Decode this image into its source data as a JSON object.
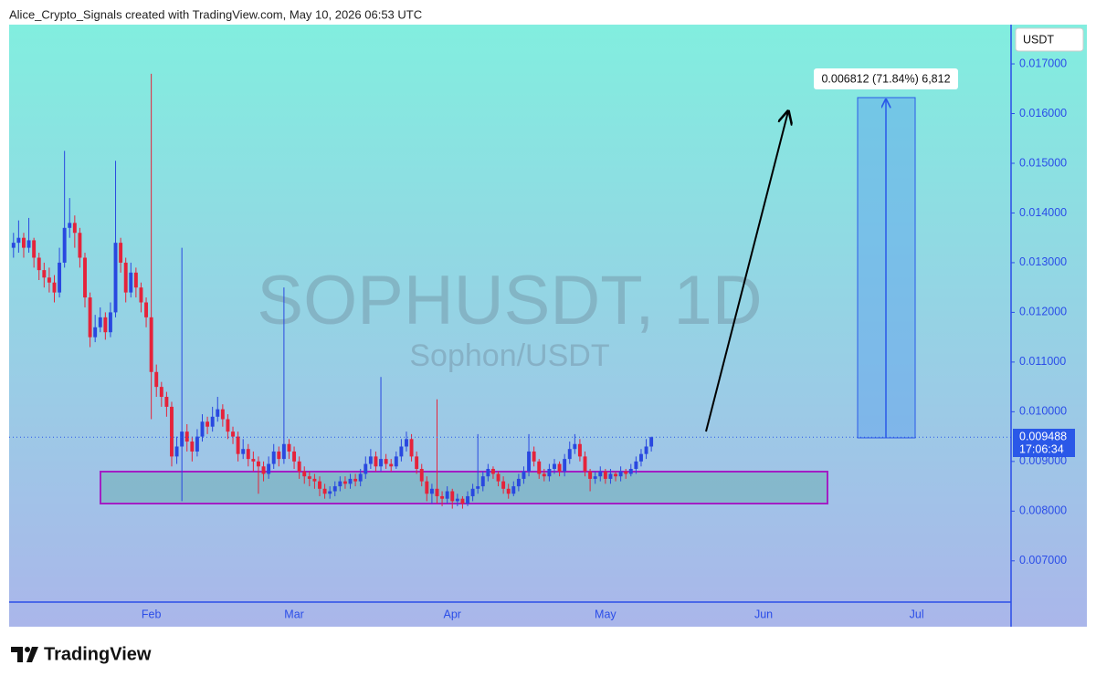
{
  "header": "Alice_Crypto_Signals created with TradingView.com, May 10, 2026 06:53 UTC",
  "footer": {
    "brand": "TradingView"
  },
  "chart_data": {
    "type": "candlestick",
    "title": "SOPHUSDT, 1D",
    "subtitle": "Sophon/USDT",
    "currency": "USDT",
    "countdown": "17:06:34",
    "measure_label": "0.006812 (71.84%) 6,812",
    "up_color": "#2948e0",
    "down_color": "#e5233a",
    "ylim": [
      0.00617,
      0.01779
    ],
    "yticks": [
      {
        "value": 0.007,
        "label": "0.007000"
      },
      {
        "value": 0.008,
        "label": "0.008000"
      },
      {
        "value": 0.009,
        "label": "0.009000"
      },
      {
        "value": 0.01,
        "label": "0.010000"
      },
      {
        "value": 0.011,
        "label": "0.011000"
      },
      {
        "value": 0.012,
        "label": "0.012000"
      },
      {
        "value": 0.013,
        "label": "0.013000"
      },
      {
        "value": 0.014,
        "label": "0.014000"
      },
      {
        "value": 0.015,
        "label": "0.015000"
      },
      {
        "value": 0.016,
        "label": "0.016000"
      },
      {
        "value": 0.017,
        "label": "0.017000"
      }
    ],
    "categories": [
      null,
      null,
      null,
      null,
      null,
      null,
      null,
      null,
      null,
      null,
      null,
      null,
      null,
      null,
      null,
      null,
      null,
      null,
      null,
      null,
      null,
      null,
      null,
      null,
      null,
      null,
      null,
      "Feb",
      null,
      null,
      null,
      null,
      null,
      null,
      null,
      null,
      null,
      null,
      null,
      null,
      null,
      null,
      null,
      null,
      null,
      null,
      null,
      null,
      null,
      null,
      null,
      null,
      null,
      null,
      null,
      "Mar",
      null,
      null,
      null,
      null,
      null,
      null,
      null,
      null,
      null,
      null,
      null,
      null,
      null,
      null,
      null,
      null,
      null,
      null,
      null,
      null,
      null,
      null,
      null,
      null,
      null,
      null,
      null,
      null,
      null,
      null,
      "Apr",
      null,
      null,
      null,
      null,
      null,
      null,
      null,
      null,
      null,
      null,
      null,
      null,
      null,
      null,
      null,
      null,
      null,
      null,
      null,
      null,
      null,
      null,
      null,
      null,
      null,
      null,
      null,
      null,
      null,
      "May",
      null,
      null,
      null,
      null,
      null,
      null,
      null,
      null,
      null,
      null,
      null,
      null,
      null,
      null,
      null,
      null,
      null,
      null,
      null,
      null,
      null,
      null,
      null,
      null,
      null,
      null,
      null,
      null,
      null,
      null,
      "Jun",
      null,
      null,
      null,
      null,
      null,
      null,
      null,
      null,
      null,
      null,
      null,
      null,
      null,
      null,
      null,
      null,
      null,
      null,
      null,
      null,
      null,
      null,
      null,
      null,
      null,
      null,
      null,
      null,
      null,
      "Jul",
      null,
      null,
      null,
      null,
      null,
      null,
      null,
      null,
      null,
      null,
      null,
      null,
      null,
      null,
      null,
      null,
      null,
      null
    ],
    "open": [
      0.0133,
      0.0134,
      0.0135,
      0.0133,
      0.01345,
      0.0131,
      0.01285,
      0.0127,
      0.0126,
      0.0124,
      0.013,
      0.0137,
      0.0138,
      0.0136,
      0.0131,
      0.0123,
      0.0115,
      0.0117,
      0.0119,
      0.0116,
      0.012,
      0.0134,
      0.013,
      0.0124,
      0.0128,
      0.0125,
      0.0122,
      0.0119,
      0.0108,
      0.0105,
      0.0103,
      0.0101,
      0.0091,
      0.0093,
      0.0096,
      0.0094,
      0.0092,
      0.0095,
      0.0098,
      0.0097,
      0.0099,
      0.01005,
      0.00985,
      0.0096,
      0.0095,
      0.00915,
      0.00925,
      0.00905,
      0.009,
      0.0089,
      0.00875,
      0.00895,
      0.0092,
      0.00905,
      0.00935,
      0.0092,
      0.009,
      0.0088,
      0.0087,
      0.00865,
      0.0086,
      0.00845,
      0.00835,
      0.0084,
      0.0085,
      0.0086,
      0.00855,
      0.00865,
      0.0086,
      0.00875,
      0.00895,
      0.0091,
      0.0089,
      0.00905,
      0.00895,
      0.0089,
      0.0091,
      0.0093,
      0.00945,
      0.0091,
      0.00885,
      0.0086,
      0.00835,
      0.00845,
      0.0083,
      0.00825,
      0.0084,
      0.0082,
      0.00825,
      0.00815,
      0.0083,
      0.00845,
      0.0085,
      0.0087,
      0.00885,
      0.00875,
      0.0086,
      0.00845,
      0.00835,
      0.0085,
      0.00865,
      0.0088,
      0.0092,
      0.009,
      0.00875,
      0.0087,
      0.00885,
      0.00895,
      0.0088,
      0.00905,
      0.00925,
      0.00935,
      0.0091,
      0.0088,
      0.00865,
      0.0087,
      0.0088,
      0.00865,
      0.00875,
      0.0087,
      0.0088,
      0.00875,
      0.00885,
      0.009,
      0.00915,
      0.0093,
      null,
      null,
      null,
      null,
      null,
      null,
      null,
      null,
      null,
      null,
      null,
      null,
      null,
      null,
      null,
      null,
      null,
      null,
      null,
      null,
      null,
      null,
      null,
      null,
      null,
      null,
      null,
      null,
      null,
      null,
      null,
      null,
      null,
      null,
      null,
      null,
      null,
      null,
      null,
      null,
      null,
      null,
      null,
      null,
      null,
      null,
      null,
      null,
      null,
      null,
      null,
      null,
      null,
      null,
      null,
      null,
      null,
      null,
      null,
      null,
      null,
      null,
      null,
      null,
      null,
      null,
      null,
      null,
      null,
      null
    ],
    "high": [
      0.0136,
      0.01385,
      0.0136,
      0.0139,
      0.0135,
      0.0132,
      0.013,
      0.0129,
      0.01275,
      0.0133,
      0.01525,
      0.0143,
      0.01395,
      0.0137,
      0.0132,
      0.0124,
      0.01195,
      0.0121,
      0.012,
      0.0122,
      0.01505,
      0.0135,
      0.0131,
      0.013,
      0.0129,
      0.0126,
      0.0123,
      0.0168,
      0.01095,
      0.0106,
      0.0104,
      0.0102,
      0.0095,
      0.0133,
      0.00975,
      0.0095,
      0.00965,
      0.00995,
      0.0099,
      0.0101,
      0.0103,
      0.01015,
      0.00995,
      0.0097,
      0.0096,
      0.00945,
      0.00935,
      0.0092,
      0.0091,
      0.009,
      0.0091,
      0.00935,
      0.0093,
      0.0125,
      0.00945,
      0.0093,
      0.0091,
      0.0089,
      0.0088,
      0.00875,
      0.0087,
      0.00855,
      0.0085,
      0.0086,
      0.0087,
      0.0087,
      0.00875,
      0.00875,
      0.00885,
      0.0091,
      0.00925,
      0.0092,
      0.0107,
      0.00915,
      0.00905,
      0.0092,
      0.00945,
      0.0096,
      0.00955,
      0.0092,
      0.00895,
      0.0087,
      0.00855,
      0.01025,
      0.0084,
      0.0085,
      0.00845,
      0.00835,
      0.0083,
      0.0084,
      0.00855,
      0.00955,
      0.0088,
      0.00895,
      0.0089,
      0.0088,
      0.0087,
      0.00855,
      0.0086,
      0.00875,
      0.0089,
      0.00955,
      0.0093,
      0.00905,
      0.00885,
      0.00895,
      0.00905,
      0.009,
      0.00915,
      0.0094,
      0.00955,
      0.00945,
      0.0092,
      0.00885,
      0.0088,
      0.0089,
      0.00885,
      0.00885,
      0.0088,
      0.0089,
      0.00885,
      0.00895,
      0.0091,
      0.00925,
      0.00945,
      0.0095,
      null,
      null,
      null,
      null,
      null,
      null,
      null,
      null,
      null,
      null,
      null,
      null,
      null,
      null,
      null,
      null,
      null,
      null,
      null,
      null,
      null,
      null,
      null,
      null,
      null,
      null,
      null,
      null,
      null,
      null,
      null,
      null,
      null,
      null,
      null,
      null,
      null,
      null,
      null,
      null,
      null,
      null,
      null,
      null,
      null,
      null,
      null,
      null,
      null,
      null,
      null,
      null,
      null,
      null,
      null,
      null,
      null,
      null,
      null,
      null,
      null,
      null,
      null,
      null,
      null,
      null,
      null,
      null,
      null,
      null
    ],
    "low": [
      0.0131,
      0.0132,
      0.0131,
      0.0132,
      0.0129,
      0.01265,
      0.0125,
      0.0124,
      0.0122,
      0.0123,
      0.0129,
      0.0135,
      0.0133,
      0.0129,
      0.0121,
      0.0113,
      0.0114,
      0.0116,
      0.01145,
      0.0115,
      0.0119,
      0.0128,
      0.0122,
      0.0123,
      0.0123,
      0.012,
      0.0117,
      0.00985,
      0.0103,
      0.0101,
      0.0099,
      0.0089,
      0.00895,
      0.0082,
      0.0092,
      0.009,
      0.0091,
      0.0094,
      0.00955,
      0.0096,
      0.0098,
      0.0097,
      0.00945,
      0.00935,
      0.009,
      0.00905,
      0.0089,
      0.0088,
      0.00835,
      0.0086,
      0.00865,
      0.00885,
      0.0089,
      0.00895,
      0.00905,
      0.00885,
      0.00865,
      0.00855,
      0.0085,
      0.00845,
      0.0083,
      0.00825,
      0.00825,
      0.0083,
      0.0084,
      0.00845,
      0.00845,
      0.0085,
      0.0085,
      0.00865,
      0.00885,
      0.0088,
      0.0088,
      0.00885,
      0.0088,
      0.00885,
      0.009,
      0.0092,
      0.009,
      0.00875,
      0.0085,
      0.0082,
      0.00815,
      0.00815,
      0.0081,
      0.00815,
      0.00805,
      0.0081,
      0.00805,
      0.0081,
      0.0082,
      0.00835,
      0.0084,
      0.0086,
      0.00865,
      0.0085,
      0.00835,
      0.00825,
      0.0083,
      0.0084,
      0.00855,
      0.0087,
      0.0089,
      0.00865,
      0.0086,
      0.0086,
      0.00875,
      0.0087,
      0.0087,
      0.00895,
      0.00915,
      0.009,
      0.0087,
      0.0084,
      0.00855,
      0.0086,
      0.00855,
      0.00855,
      0.0086,
      0.0086,
      0.00865,
      0.0087,
      0.00875,
      0.0089,
      0.00905,
      0.0092,
      null,
      null,
      null,
      null,
      null,
      null,
      null,
      null,
      null,
      null,
      null,
      null,
      null,
      null,
      null,
      null,
      null,
      null,
      null,
      null,
      null,
      null,
      null,
      null,
      null,
      null,
      null,
      null,
      null,
      null,
      null,
      null,
      null,
      null,
      null,
      null,
      null,
      null,
      null,
      null,
      null,
      null,
      null,
      null,
      null,
      null,
      null,
      null,
      null,
      null,
      null,
      null,
      null,
      null,
      null,
      null,
      null,
      null,
      null,
      null,
      null,
      null,
      null,
      null,
      null,
      null,
      null,
      null,
      null,
      null
    ],
    "close": [
      0.0134,
      0.0135,
      0.0133,
      0.01345,
      0.0131,
      0.01285,
      0.0127,
      0.0126,
      0.0124,
      0.013,
      0.0137,
      0.0138,
      0.0136,
      0.0131,
      0.0123,
      0.0115,
      0.0117,
      0.0119,
      0.0116,
      0.012,
      0.0134,
      0.013,
      0.0124,
      0.0128,
      0.0125,
      0.0122,
      0.0119,
      0.0108,
      0.0105,
      0.0103,
      0.0101,
      0.0091,
      0.0093,
      0.0096,
      0.0094,
      0.0092,
      0.0095,
      0.0098,
      0.0097,
      0.0099,
      0.01005,
      0.00985,
      0.0096,
      0.0095,
      0.00915,
      0.00925,
      0.00905,
      0.009,
      0.0089,
      0.00875,
      0.00895,
      0.0092,
      0.00905,
      0.00935,
      0.0092,
      0.009,
      0.0088,
      0.0087,
      0.00865,
      0.0086,
      0.00845,
      0.00835,
      0.0084,
      0.0085,
      0.0086,
      0.00855,
      0.00865,
      0.0086,
      0.00875,
      0.00895,
      0.0091,
      0.0089,
      0.00905,
      0.00895,
      0.0089,
      0.0091,
      0.0093,
      0.00945,
      0.0091,
      0.00885,
      0.0086,
      0.00835,
      0.00845,
      0.0083,
      0.00825,
      0.0084,
      0.0082,
      0.00825,
      0.00815,
      0.0083,
      0.00845,
      0.0085,
      0.0087,
      0.00885,
      0.00875,
      0.0086,
      0.00845,
      0.00835,
      0.0085,
      0.00865,
      0.0088,
      0.0092,
      0.009,
      0.00875,
      0.0087,
      0.00885,
      0.00895,
      0.0088,
      0.00905,
      0.00925,
      0.00935,
      0.0091,
      0.0088,
      0.00865,
      0.0087,
      0.0088,
      0.00865,
      0.00875,
      0.0087,
      0.0088,
      0.00875,
      0.00885,
      0.009,
      0.00915,
      0.0093,
      0.009488,
      null,
      null,
      null,
      null,
      null,
      null,
      null,
      null,
      null,
      null,
      null,
      null,
      null,
      null,
      null,
      null,
      null,
      null,
      null,
      null,
      null,
      null,
      null,
      null,
      null,
      null,
      null,
      null,
      null,
      null,
      null,
      null,
      null,
      null,
      null,
      null,
      null,
      null,
      null,
      null,
      null,
      null,
      null,
      null,
      null,
      null,
      null,
      null,
      null,
      null,
      null,
      null,
      null,
      null,
      null,
      null,
      null,
      null,
      null,
      null,
      null,
      null,
      null,
      null,
      null,
      null,
      null,
      null,
      null,
      null
    ]
  }
}
